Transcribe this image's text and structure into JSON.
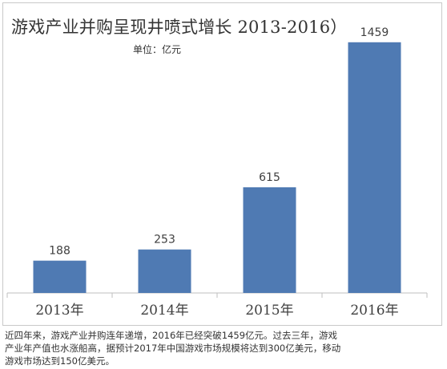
{
  "chart_data": {
    "type": "bar",
    "title": "游戏产业并购呈现井喷式增长 2013-2016）",
    "unit": "单位：亿元",
    "categories": [
      "2013年",
      "2014年",
      "2015年",
      "2016年"
    ],
    "values": [
      188,
      253,
      615,
      1459
    ],
    "data_labels": [
      "188",
      "253",
      "615",
      "1459"
    ],
    "ylim": [
      0,
      1500
    ],
    "grid": false,
    "legend": "none",
    "bar_color": "#4f7ab3",
    "axis_color": "#bfbfbf"
  },
  "caption": {
    "lines": [
      "近四年来，游戏产业并购连年递增，2016年已经突破1459亿元。过去三年，游戏",
      "产业年产值也水涨船高，据预计2017年中国游戏市场规模将达到300亿美元，移动",
      "游戏市场达到150亿美元。"
    ]
  }
}
